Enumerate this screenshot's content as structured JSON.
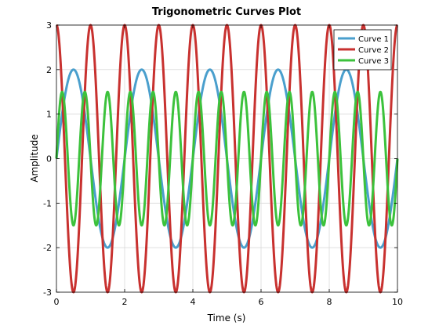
{
  "chart_data": {
    "type": "line",
    "title": "Trigonometric Curves Plot",
    "xlabel": "Time (s)",
    "ylabel": "Amplitude",
    "xlim": [
      0,
      10
    ],
    "ylim": [
      -3,
      3
    ],
    "xticks": [
      0,
      2,
      4,
      6,
      8,
      10
    ],
    "yticks": [
      -3,
      -2,
      -1,
      0,
      1,
      2,
      3
    ],
    "grid": true,
    "legend_position": "top-right",
    "series": [
      {
        "name": "Curve 1",
        "color": "#4a9fcd",
        "function": "2*sin(pi*t)",
        "amplitude": 2,
        "frequency_hz": 0.5,
        "phase": "sine"
      },
      {
        "name": "Curve 2",
        "color": "#c8312f",
        "function": "3*cos(2*pi*t)",
        "amplitude": 3,
        "frequency_hz": 1.0,
        "phase": "cosine"
      },
      {
        "name": "Curve 3",
        "color": "#3cc23c",
        "function": "1.5*sin(3*pi*t)",
        "amplitude": 1.5,
        "frequency_hz": 1.5,
        "phase": "sine"
      }
    ]
  }
}
